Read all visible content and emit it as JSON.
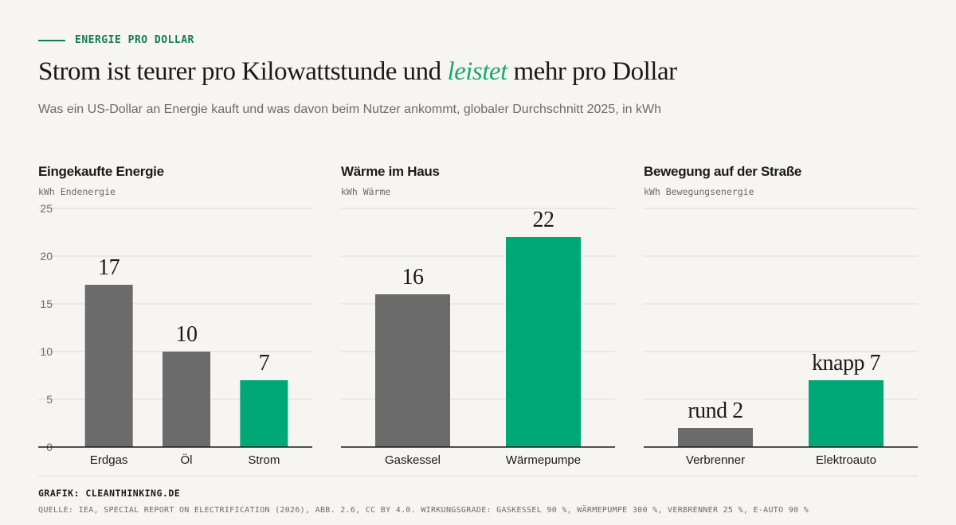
{
  "kicker": "ENERGIE PRO DOLLAR",
  "headline": {
    "before": "Strom ist teurer pro Kilowattstunde und ",
    "emphasis": "leistet",
    "after": " mehr pro Dollar"
  },
  "subtitle": "Was ein US-Dollar an Energie kauft und was davon beim Nutzer ankommt, globaler Durchschnitt 2025, in kWh",
  "colors": {
    "gray": "#6b6b6b",
    "green": "#00a878",
    "accent_text": "#157a57"
  },
  "chart_data": [
    {
      "type": "bar",
      "title": "Eingekaufte Energie",
      "ylabel": "kWh Endenergie",
      "ylim": [
        0,
        25
      ],
      "yticks": [
        0,
        5,
        10,
        15,
        20,
        25
      ],
      "categories": [
        "Erdgas",
        "Öl",
        "Strom"
      ],
      "values": [
        17,
        10,
        7
      ],
      "data_labels": [
        "17",
        "10",
        "7"
      ],
      "bar_colors": [
        "gray",
        "gray",
        "green"
      ],
      "grid": true
    },
    {
      "type": "bar",
      "title": "Wärme im Haus",
      "ylabel": "kWh Wärme",
      "ylim": [
        0,
        25
      ],
      "categories": [
        "Gaskessel",
        "Wärmepumpe"
      ],
      "values": [
        16,
        22
      ],
      "data_labels": [
        "16",
        "22"
      ],
      "bar_colors": [
        "gray",
        "green"
      ],
      "grid": true
    },
    {
      "type": "bar",
      "title": "Bewegung auf der Straße",
      "ylabel": "kWh Bewegungsenergie",
      "ylim": [
        0,
        25
      ],
      "categories": [
        "Verbrenner",
        "Elektroauto"
      ],
      "values": [
        2,
        7
      ],
      "data_labels": [
        "rund 2",
        "knapp 7"
      ],
      "bar_colors": [
        "gray",
        "green"
      ],
      "grid": true
    }
  ],
  "footer": {
    "credit": "GRAFIK: CLEANTHINKING.DE",
    "source": "QUELLE: IEA, SPECIAL REPORT ON ELECTRIFICATION (2026), ABB. 2.6, CC BY 4.0. WIRKUNGSGRADE: GASKESSEL 90 %, WÄRMEPUMPE 300 %, VERBRENNER 25 %, E-AUTO 90 %"
  }
}
